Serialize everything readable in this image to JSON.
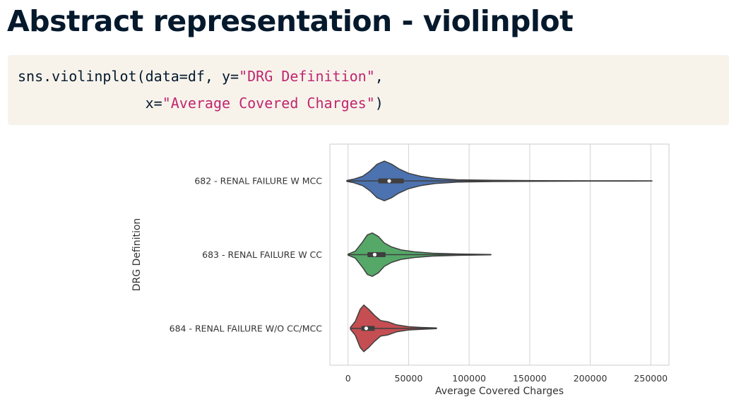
{
  "slide": {
    "title": "Abstract representation - violinplot"
  },
  "code": {
    "line1": {
      "prefix": "sns.violinplot(data=df, y=",
      "string": "\"DRG Definition\"",
      "suffix": ","
    },
    "line2": {
      "prefix": "               x=",
      "string": "\"Average Covered Charges\"",
      "suffix": ")"
    },
    "string_color": "#c0266f",
    "text_color": "#05192d",
    "background_color": "#f7f3eb"
  },
  "chart_data": {
    "type": "violin",
    "orientation": "horizontal",
    "xlabel": "Average Covered Charges",
    "ylabel": "DRG Definition",
    "xlim": [
      -15000,
      265000
    ],
    "xticks": [
      0,
      50000,
      100000,
      150000,
      200000,
      250000
    ],
    "grid": {
      "vertical": true,
      "horizontal": false
    },
    "categories": [
      "682 - RENAL FAILURE W MCC",
      "683 - RENAL FAILURE W CC",
      "684 - RENAL FAILURE W/O CC/MCC"
    ],
    "series": [
      {
        "category": "682 - RENAL FAILURE W MCC",
        "color": "#4c72b0",
        "min": -1000,
        "q1": 25000,
        "median": 34000,
        "q3": 46000,
        "max": 251000,
        "density": [
          [
            -1000,
            0.02
          ],
          [
            5000,
            0.08
          ],
          [
            12000,
            0.2
          ],
          [
            18000,
            0.42
          ],
          [
            24000,
            0.72
          ],
          [
            30000,
            0.85
          ],
          [
            36000,
            0.72
          ],
          [
            42000,
            0.52
          ],
          [
            50000,
            0.33
          ],
          [
            60000,
            0.2
          ],
          [
            72000,
            0.11
          ],
          [
            90000,
            0.05
          ],
          [
            120000,
            0.025
          ],
          [
            160000,
            0.012
          ],
          [
            200000,
            0.006
          ],
          [
            251000,
            0.003
          ]
        ]
      },
      {
        "category": "683 - RENAL FAILURE W CC",
        "color": "#55a868",
        "min": 0,
        "q1": 16000,
        "median": 22000,
        "q3": 31000,
        "max": 118000,
        "density": [
          [
            0,
            0.02
          ],
          [
            6000,
            0.15
          ],
          [
            12000,
            0.55
          ],
          [
            16000,
            0.85
          ],
          [
            20000,
            0.93
          ],
          [
            25000,
            0.78
          ],
          [
            30000,
            0.5
          ],
          [
            36000,
            0.33
          ],
          [
            44000,
            0.2
          ],
          [
            55000,
            0.12
          ],
          [
            70000,
            0.06
          ],
          [
            90000,
            0.03
          ],
          [
            118000,
            0.01
          ]
        ]
      },
      {
        "category": "684 - RENAL FAILURE W/O CC/MCC",
        "color": "#c44e52",
        "min": 2000,
        "q1": 11000,
        "median": 15000,
        "q3": 22000,
        "max": 73000,
        "density": [
          [
            2000,
            0.04
          ],
          [
            6000,
            0.3
          ],
          [
            10000,
            0.82
          ],
          [
            13000,
            1.0
          ],
          [
            17000,
            0.82
          ],
          [
            22000,
            0.55
          ],
          [
            27000,
            0.33
          ],
          [
            33000,
            0.28
          ],
          [
            40000,
            0.15
          ],
          [
            50000,
            0.07
          ],
          [
            60000,
            0.04
          ],
          [
            73000,
            0.015
          ]
        ]
      }
    ]
  }
}
